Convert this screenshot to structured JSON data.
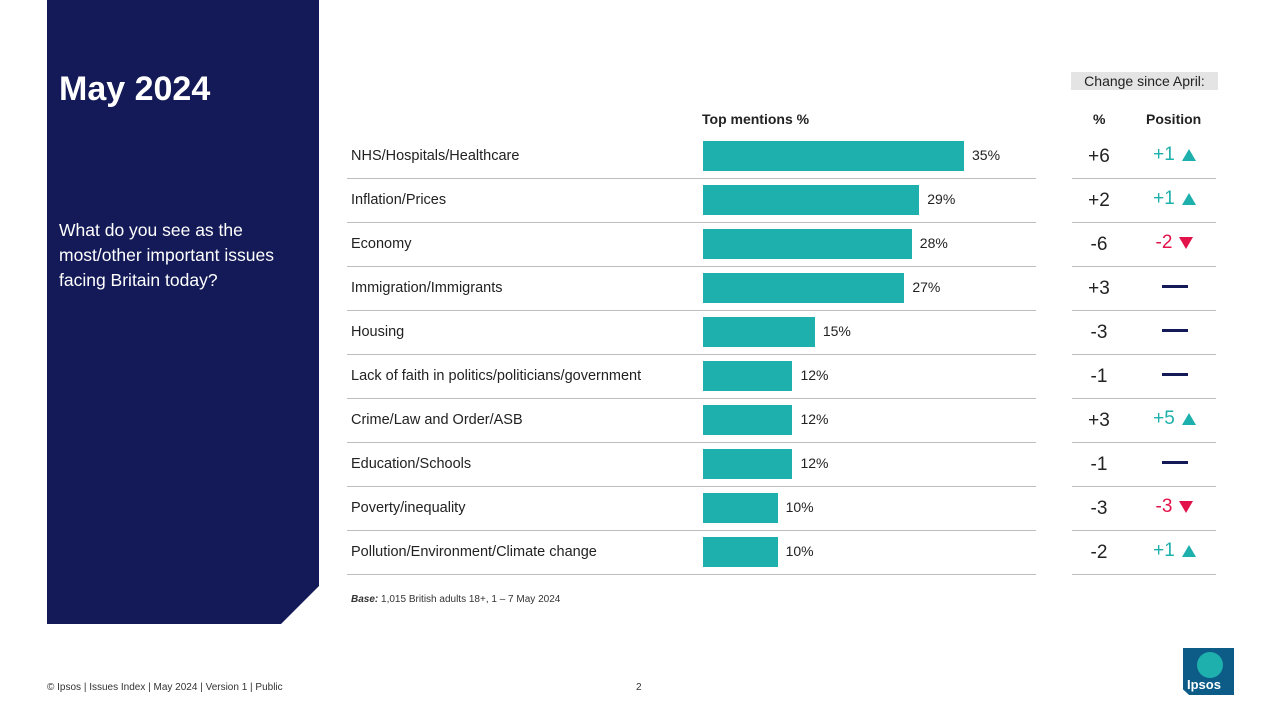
{
  "title": "May 2024",
  "question": "What do you see as the most/other important issues facing Britain today?",
  "change_header": "Change since April:",
  "columns": {
    "top_mentions": "Top mentions %",
    "pct": "%",
    "position": "Position"
  },
  "colors": {
    "bar": "#1eb0ac",
    "up": "#1eb0ac",
    "down": "#e3124a",
    "panel": "#131a57"
  },
  "chart_data": {
    "type": "bar",
    "orientation": "horizontal",
    "categories": [
      "NHS/Hospitals/Healthcare",
      "Inflation/Prices",
      "Economy",
      "Immigration/Immigrants",
      "Housing",
      "Lack of faith in politics/politicians/government",
      "Crime/Law and Order/ASB",
      "Education/Schools",
      "Poverty/inequality",
      "Pollution/Environment/Climate change"
    ],
    "values": [
      35,
      29,
      28,
      27,
      15,
      12,
      12,
      12,
      10,
      10
    ],
    "value_labels": [
      "35%",
      "29%",
      "28%",
      "27%",
      "15%",
      "12%",
      "12%",
      "12%",
      "10%",
      "10%"
    ],
    "pct_change": [
      "+6",
      "+2",
      "-6",
      "+3",
      "-3",
      "-1",
      "+3",
      "-1",
      "-3",
      "-2"
    ],
    "position_change": [
      {
        "text": "+1",
        "dir": "up"
      },
      {
        "text": "+1",
        "dir": "up"
      },
      {
        "text": "-2",
        "dir": "down"
      },
      {
        "text": "",
        "dir": "same"
      },
      {
        "text": "",
        "dir": "same"
      },
      {
        "text": "",
        "dir": "same"
      },
      {
        "text": "+5",
        "dir": "up"
      },
      {
        "text": "",
        "dir": "same"
      },
      {
        "text": "-3",
        "dir": "down"
      },
      {
        "text": "+1",
        "dir": "up"
      }
    ],
    "xlim": [
      0,
      35
    ]
  },
  "base_label": "Base:",
  "base_text": "1,015 British adults 18+, 1 – 7 May 2024",
  "footer": "© Ipsos | Issues Index | May 2024 | Version 1 | Public",
  "page_number": "2",
  "logo_text": "Ipsos"
}
